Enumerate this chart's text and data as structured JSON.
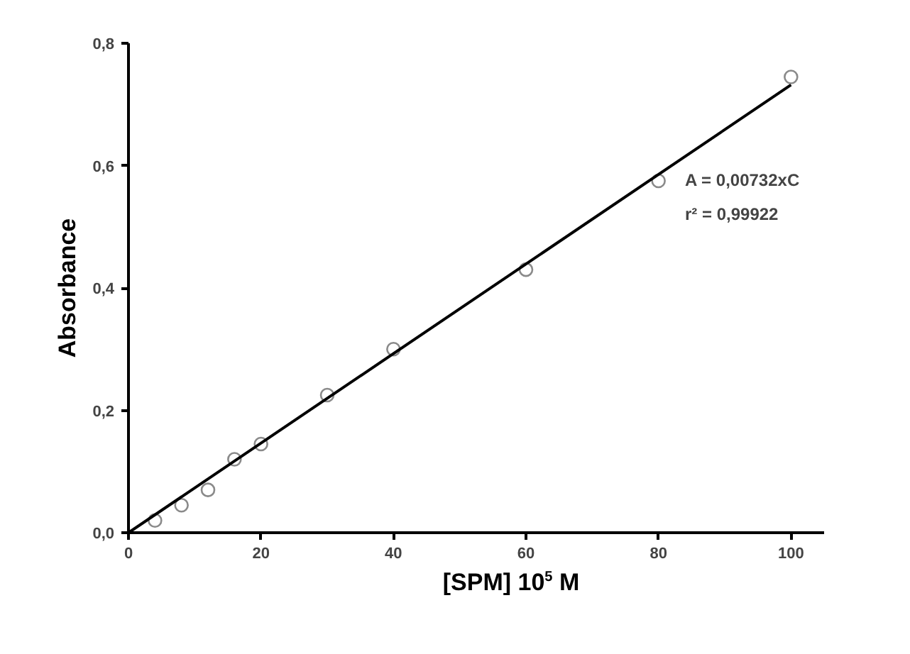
{
  "chart_data": {
    "type": "scatter",
    "xlabel": "[SPM] 10$^{5}$ M",
    "ylabel": "Absorbance",
    "xlim": [
      0,
      105
    ],
    "ylim": [
      0,
      0.8
    ],
    "xticks": [
      0,
      20,
      40,
      60,
      80,
      100
    ],
    "yticks": [
      {
        "value": 0,
        "label": "0,0"
      },
      {
        "value": 0.2,
        "label": "0,2"
      },
      {
        "value": 0.4,
        "label": "0,4"
      },
      {
        "value": 0.6,
        "label": "0,6"
      },
      {
        "value": 0.8,
        "label": "0,8"
      }
    ],
    "grid": false,
    "marker": "circle",
    "annotations": [
      "A = 0,00732xC",
      "r² = 0,99922"
    ],
    "series": [
      {
        "color": "#8a8a8a",
        "x": [
          4,
          8,
          12,
          16,
          20,
          30,
          40,
          60,
          80,
          100
        ],
        "values": [
          0.02,
          0.045,
          0.07,
          0.12,
          0.145,
          0.225,
          0.3,
          0.43,
          0.575,
          0.745
        ]
      },
      {
        "type": "line",
        "color": "#000000",
        "x": [
          0,
          100
        ],
        "values": [
          0,
          0.732
        ],
        "marker": "none",
        "line_style": "solid"
      }
    ]
  }
}
